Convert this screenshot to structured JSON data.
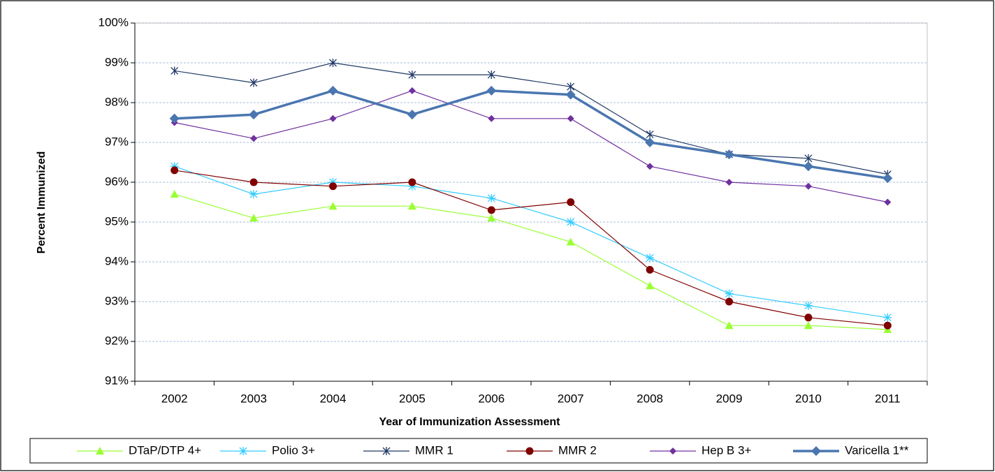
{
  "chart_data": {
    "type": "line",
    "x_label": "Year of Immunization Assessment",
    "y_label": "Percent Immunized",
    "categories": [
      "2002",
      "2003",
      "2004",
      "2005",
      "2006",
      "2007",
      "2008",
      "2009",
      "2010",
      "2011"
    ],
    "series": [
      {
        "name": "DTaP/DTP 4+",
        "color": "#99ff33",
        "marker": "triangle",
        "line_width": 1.2,
        "values": [
          95.7,
          95.1,
          95.4,
          95.4,
          95.1,
          94.5,
          93.4,
          92.4,
          92.4,
          92.3
        ]
      },
      {
        "name": "Polio 3+",
        "color": "#33ccff",
        "marker": "asterisk",
        "line_width": 1.2,
        "values": [
          96.4,
          95.7,
          96.0,
          95.9,
          95.6,
          95.0,
          94.1,
          93.2,
          92.9,
          92.6
        ]
      },
      {
        "name": "MMR 1",
        "color": "#1f3864",
        "marker": "star",
        "line_width": 1.2,
        "values": [
          98.8,
          98.5,
          99.0,
          98.7,
          98.7,
          98.4,
          97.2,
          96.7,
          96.6,
          96.2
        ]
      },
      {
        "name": "MMR 2",
        "color": "#800000",
        "marker": "circle",
        "line_width": 1.2,
        "values": [
          96.3,
          96.0,
          95.9,
          96.0,
          95.3,
          95.5,
          93.8,
          93.0,
          92.6,
          92.4
        ]
      },
      {
        "name": "Hep B 3+",
        "color": "#7030a0",
        "marker": "diamond",
        "line_width": 1.2,
        "values": [
          97.5,
          97.1,
          97.6,
          98.3,
          97.6,
          97.6,
          96.4,
          96.0,
          95.9,
          95.5
        ]
      },
      {
        "name": "Varicella 1**",
        "color": "#4a76b0",
        "marker": "bigdiamond",
        "line_width": 3.5,
        "values": [
          97.6,
          97.7,
          98.3,
          97.7,
          98.3,
          98.2,
          97.0,
          96.7,
          96.4,
          96.1
        ]
      }
    ],
    "ylim": [
      91,
      100
    ],
    "yticks": [
      {
        "value": 91,
        "label": "91%"
      },
      {
        "value": 92,
        "label": "92%"
      },
      {
        "value": 93,
        "label": "93%"
      },
      {
        "value": 94,
        "label": "94%"
      },
      {
        "value": 95,
        "label": "95%"
      },
      {
        "value": 96,
        "label": "96%"
      },
      {
        "value": 97,
        "label": "97%"
      },
      {
        "value": 98,
        "label": "98%"
      },
      {
        "value": 99,
        "label": "99%"
      },
      {
        "value": 100,
        "label": "100%"
      }
    ],
    "grid": true,
    "legend": "bottom"
  }
}
